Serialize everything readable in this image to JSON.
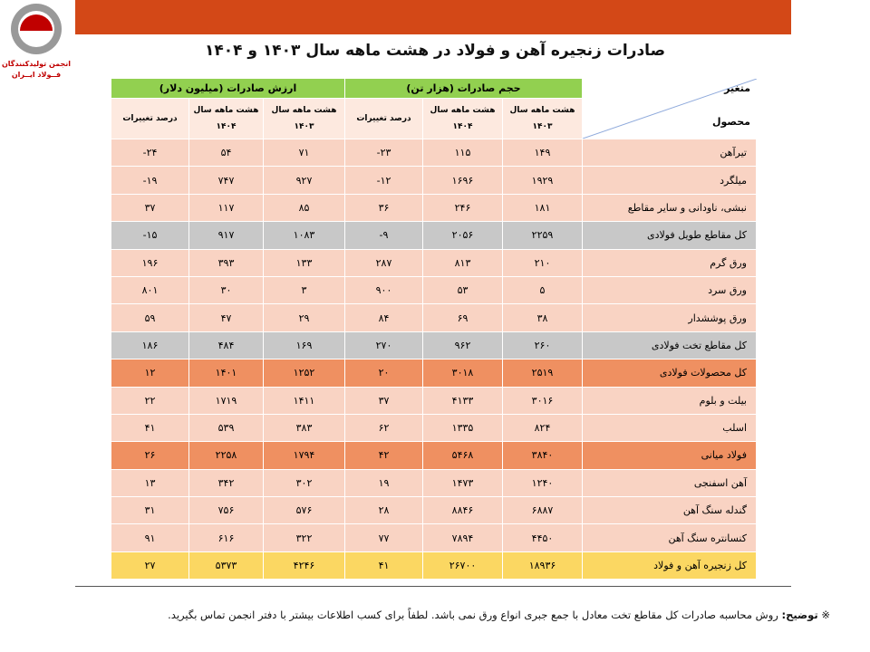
{
  "logo": {
    "line1": "انجمن تولیدکنندگان",
    "line2": "فــولاد ایــران"
  },
  "title": "صادرات زنجیره آهن و فولاد در هشت ماهه سال ۱۴۰۳ و ۱۴۰۴",
  "table": {
    "corner": {
      "top": "متغیر",
      "bottom": "محصول"
    },
    "groups": [
      "حجم صادرات (هزار تن)",
      "ارزش صادرات (میلیون دلار)"
    ],
    "subheaders": [
      "هشت ماهه سال ۱۴۰۳",
      "هشت ماهه سال ۱۴۰۴",
      "درصد تغییرات",
      "هشت ماهه سال ۱۴۰۳",
      "هشت ماهه سال ۱۴۰۴",
      "درصد تغییرات"
    ],
    "rows": [
      [
        "تیرآهن",
        "۱۴۹",
        "۱۱۵",
        "۲۳-",
        "۷۱",
        "۵۴",
        "۲۴-"
      ],
      [
        "میلگرد",
        "۱۹۲۹",
        "۱۶۹۶",
        "۱۲-",
        "۹۲۷",
        "۷۴۷",
        "۱۹-"
      ],
      [
        "نبشی، ناودانی و سایر مقاطع",
        "۱۸۱",
        "۲۴۶",
        "۳۶",
        "۸۵",
        "۱۱۷",
        "۳۷"
      ],
      [
        "کل مقاطع طویل فولادی",
        "۲۲۵۹",
        "۲۰۵۶",
        "۹-",
        "۱۰۸۳",
        "۹۱۷",
        "۱۵-"
      ],
      [
        "ورق گرم",
        "۲۱۰",
        "۸۱۳",
        "۲۸۷",
        "۱۳۳",
        "۳۹۳",
        "۱۹۶"
      ],
      [
        "ورق سرد",
        "۵",
        "۵۳",
        "۹۰۰",
        "۳",
        "۳۰",
        "۸۰۱"
      ],
      [
        "ورق پوششدار",
        "۳۸",
        "۶۹",
        "۸۴",
        "۲۹",
        "۴۷",
        "۵۹"
      ],
      [
        "کل مقاطع تخت فولادی",
        "۲۶۰",
        "۹۶۲",
        "۲۷۰",
        "۱۶۹",
        "۴۸۴",
        "۱۸۶"
      ],
      [
        "کل محصولات فولادی",
        "۲۵۱۹",
        "۳۰۱۸",
        "۲۰",
        "۱۲۵۲",
        "۱۴۰۱",
        "۱۲"
      ],
      [
        "بیلت و بلوم",
        "۳۰۱۶",
        "۴۱۳۳",
        "۳۷",
        "۱۴۱۱",
        "۱۷۱۹",
        "۲۲"
      ],
      [
        "اسلب",
        "۸۲۴",
        "۱۳۳۵",
        "۶۲",
        "۳۸۳",
        "۵۳۹",
        "۴۱"
      ],
      [
        "فولاد میانی",
        "۳۸۴۰",
        "۵۴۶۸",
        "۴۲",
        "۱۷۹۴",
        "۲۲۵۸",
        "۲۶"
      ],
      [
        "آهن اسفنجی",
        "۱۲۴۰",
        "۱۴۷۳",
        "۱۹",
        "۳۰۲",
        "۳۴۲",
        "۱۳"
      ],
      [
        "گندله سنگ آهن",
        "۶۸۸۷",
        "۸۸۴۶",
        "۲۸",
        "۵۷۶",
        "۷۵۶",
        "۳۱"
      ],
      [
        "کنسانتره سنگ آهن",
        "۴۴۵۰",
        "۷۸۹۴",
        "۷۷",
        "۳۲۲",
        "۶۱۶",
        "۹۱"
      ],
      [
        "کل زنجیره آهن و فولاد",
        "۱۸۹۳۶",
        "۲۶۷۰۰",
        "۴۱",
        "۴۲۴۶",
        "۵۳۷۳",
        "۲۷"
      ]
    ]
  },
  "note": {
    "marker": "※",
    "label": "توضیح:",
    "text": "روش محاسبه صادرات کل مقاطع تخت معادل با جمع جبری انواع ورق نمی باشد. لطفاً برای کسب اطلاعات بیشتر با دفتر انجمن تماس بگیرید."
  }
}
